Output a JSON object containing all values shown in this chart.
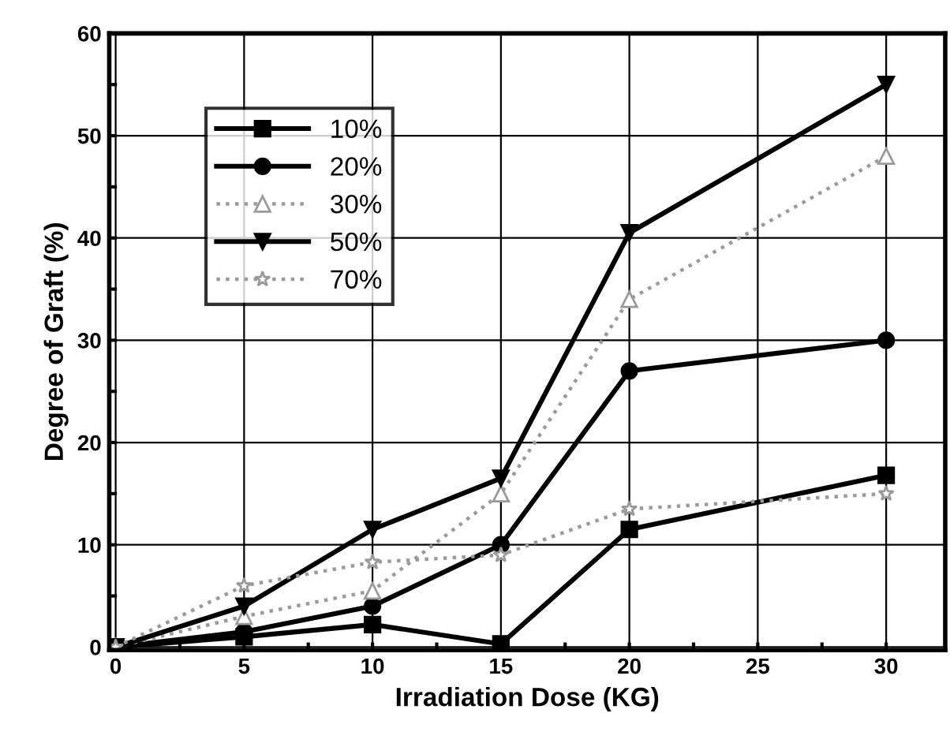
{
  "chart_data": {
    "type": "line",
    "xlabel": "Irradiation Dose (KG)",
    "ylabel": "Degree of Graft (%)",
    "x": [
      0,
      5,
      10,
      15,
      20,
      30
    ],
    "series": [
      {
        "name": "10%",
        "color": "#000000",
        "marker": "square",
        "line_style": "solid",
        "values": [
          0,
          1,
          2.2,
          0.3,
          11.5,
          16.8
        ]
      },
      {
        "name": "20%",
        "color": "#000000",
        "marker": "circle",
        "line_style": "solid",
        "values": [
          0,
          1.5,
          4,
          10,
          27,
          30
        ]
      },
      {
        "name": "30%",
        "color": "#9a9a9a",
        "marker": "triangle",
        "line_style": "dotted",
        "values": [
          0,
          3,
          5.5,
          15,
          34,
          48
        ]
      },
      {
        "name": "50%",
        "color": "#000000",
        "marker": "triangle_down",
        "line_style": "solid",
        "values": [
          0,
          4,
          11.5,
          16.5,
          40.5,
          55
        ]
      },
      {
        "name": "70%",
        "color": "#9a9a9a",
        "marker": "star",
        "line_style": "dotted",
        "values": [
          0,
          6,
          8.3,
          9,
          13.5,
          15
        ]
      }
    ],
    "xlim": [
      -0.25,
      32.3
    ],
    "ylim": [
      -0.3,
      60
    ],
    "xticks": [
      0,
      {
        "value": 2.5,
        "label": null
      },
      5,
      {
        "value": 7.5,
        "label": null
      },
      10,
      {
        "value": 12.5,
        "label": null
      },
      15,
      {
        "value": 17.5,
        "label": null
      },
      20,
      {
        "value": 22.5,
        "label": null
      },
      25,
      {
        "value": 27.5,
        "label": null
      },
      30
    ],
    "yticks": [
      0,
      {
        "value": 5,
        "label": null
      },
      10,
      {
        "value": 15,
        "label": null
      },
      20,
      {
        "value": 25,
        "label": null
      },
      30,
      {
        "value": 35,
        "label": null
      },
      40,
      {
        "value": 45,
        "label": null
      },
      50,
      {
        "value": 55,
        "label": null
      },
      60
    ],
    "grid": true,
    "legend": "top left"
  }
}
